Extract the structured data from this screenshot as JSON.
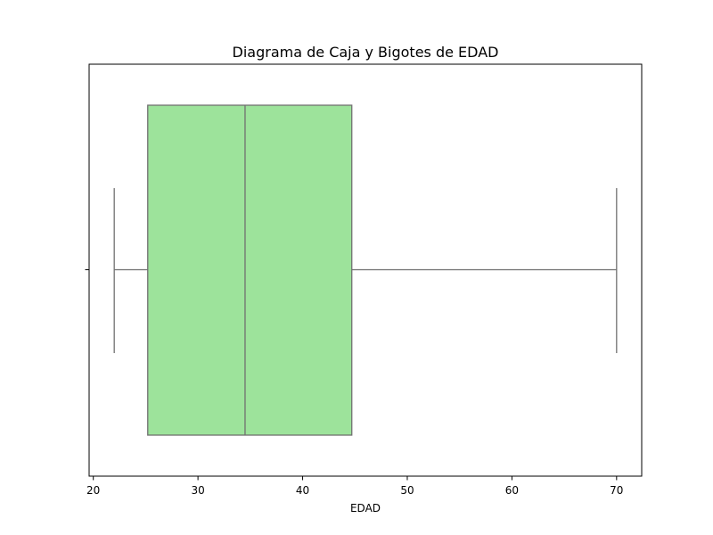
{
  "chart_data": {
    "type": "boxplot",
    "title": "Diagrama de Caja y Bigotes de EDAD",
    "xlabel": "EDAD",
    "ylabel": "",
    "orientation": "horizontal",
    "xlim": [
      19.6,
      72.4
    ],
    "x_ticks": [
      20,
      30,
      40,
      50,
      60,
      70
    ],
    "grid": false,
    "box": {
      "whisker_low": 22,
      "q1": 25.2,
      "median": 34.5,
      "q3": 44.7,
      "whisker_high": 70
    },
    "colors": {
      "box_fill": "#9de39b",
      "box_edge": "#707070",
      "axes": "#000000"
    }
  }
}
